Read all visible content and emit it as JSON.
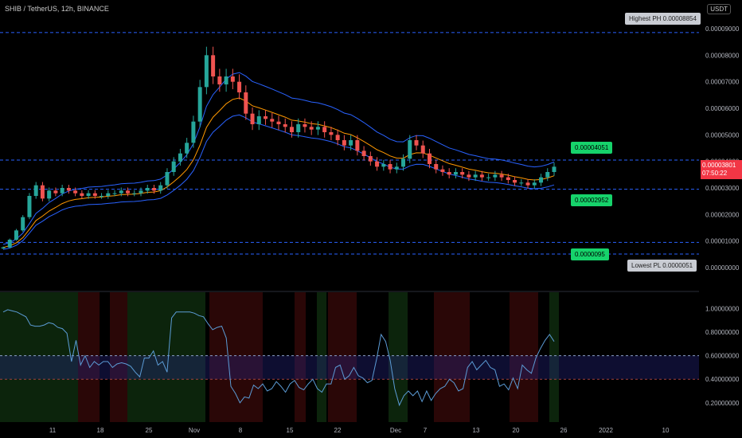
{
  "header": {
    "symbol": "SHIB / TetherUS, 12h, BINANCE",
    "currency": "USDT"
  },
  "levels": {
    "highest_ph_label": "Highest PH 0.00008854",
    "lowest_pl_label": "Lowest PL 0.0000051",
    "upper_tag": "0.00004051",
    "mid_tag": "0.00002952",
    "low_tag": "0.0000095",
    "current_price": "0.00003801",
    "countdown": "07:50:22"
  },
  "colors": {
    "background": "#000000",
    "bull": "#26a69a",
    "bear": "#ef5350",
    "band": "#2962ff",
    "ma": "#ff9800",
    "dash": "#2962ff",
    "osc": "#5b9bd5"
  },
  "chart_data": [
    {
      "type": "line",
      "subtype": "candlestick",
      "x_tick_labels": [
        "11",
        "18",
        "25",
        "Nov",
        "8",
        "15",
        "22",
        "Dec",
        "7",
        "13",
        "20",
        "26",
        "2022",
        "10"
      ],
      "y_tick_labels": [
        "0.00009000",
        "0.00008000",
        "0.00007000",
        "0.00006000",
        "0.00005000",
        "0.00004000",
        "0.00003000",
        "0.00002000",
        "0.00001000",
        "0.00000000"
      ],
      "ylim": [
        0,
        9e-05
      ],
      "horizontal_levels": [
        8.854e-05,
        4.051e-05,
        2.952e-05,
        9.5e-06,
        5.1e-06
      ],
      "close": [
        7.6e-06,
        1.05e-05,
        1.4e-05,
        1.9e-05,
        2.7e-05,
        3.1e-05,
        2.6e-05,
        2.9e-05,
        2.8e-05,
        3e-05,
        2.9e-05,
        2.8e-05,
        2.7e-05,
        2.8e-05,
        2.7e-05,
        2.7e-05,
        2.8e-05,
        2.8e-05,
        2.9e-05,
        2.8e-05,
        2.8e-05,
        2.9e-05,
        3e-05,
        2.9e-05,
        3.1e-05,
        3.6e-05,
        4e-05,
        4.3e-05,
        4.7e-05,
        5.5e-05,
        6.8e-05,
        8e-05,
        7.2e-05,
        6.9e-05,
        7.2e-05,
        7e-05,
        6.6e-05,
        5.8e-05,
        5.4e-05,
        5.7e-05,
        5.6e-05,
        5.5e-05,
        5.4e-05,
        5.3e-05,
        5.1e-05,
        5.4e-05,
        5.3e-05,
        5.2e-05,
        5.3e-05,
        5.1e-05,
        5e-05,
        4.8e-05,
        4.6e-05,
        4.8e-05,
        4.4e-05,
        4.2e-05,
        4e-05,
        3.8e-05,
        3.9e-05,
        3.7e-05,
        3.8e-05,
        4.1e-05,
        4.8e-05,
        4.6e-05,
        4.3e-05,
        3.9e-05,
        3.7e-05,
        3.6e-05,
        3.5e-05,
        3.6e-05,
        3.5e-05,
        3.4e-05,
        3.5e-05,
        3.4e-05,
        3.4e-05,
        3.5e-05,
        3.4e-05,
        3.3e-05,
        3.2e-05,
        3.2e-05,
        3.1e-05,
        3.2e-05,
        3.4e-05,
        3.6e-05,
        3.8e-05
      ]
    },
    {
      "type": "line",
      "y_tick_labels": [
        "1.00000000",
        "0.80000000",
        "0.60000000",
        "0.40000000",
        "0.20000000"
      ],
      "ylim": [
        0.05,
        1.05
      ],
      "reference_lines": [
        0.6,
        0.4
      ],
      "values": [
        0.97,
        0.99,
        0.98,
        0.97,
        0.95,
        0.93,
        0.86,
        0.85,
        0.85,
        0.86,
        0.88,
        0.87,
        0.84,
        0.83,
        0.79,
        0.55,
        0.73,
        0.52,
        0.6,
        0.5,
        0.55,
        0.52,
        0.55,
        0.55,
        0.5,
        0.53,
        0.54,
        0.53,
        0.51,
        0.46,
        0.42,
        0.58,
        0.58,
        0.64,
        0.52,
        0.55,
        0.46,
        0.92,
        0.97,
        0.97,
        0.97,
        0.97,
        0.96,
        0.94,
        0.93,
        0.87,
        0.82,
        0.84,
        0.85,
        0.75,
        0.34,
        0.28,
        0.2,
        0.25,
        0.24,
        0.35,
        0.32,
        0.36,
        0.3,
        0.32,
        0.38,
        0.34,
        0.29,
        0.36,
        0.39,
        0.33,
        0.31,
        0.36,
        0.4,
        0.32,
        0.29,
        0.36,
        0.36,
        0.5,
        0.52,
        0.4,
        0.43,
        0.5,
        0.43,
        0.41,
        0.37,
        0.39,
        0.57,
        0.78,
        0.72,
        0.56,
        0.32,
        0.18,
        0.26,
        0.3,
        0.26,
        0.3,
        0.21,
        0.3,
        0.22,
        0.28,
        0.32,
        0.34,
        0.4,
        0.37,
        0.3,
        0.32,
        0.5,
        0.55,
        0.48,
        0.52,
        0.56,
        0.5,
        0.48,
        0.34,
        0.36,
        0.31,
        0.41,
        0.32,
        0.52,
        0.48,
        0.45,
        0.58,
        0.66,
        0.73,
        0.78,
        0.72
      ]
    }
  ]
}
